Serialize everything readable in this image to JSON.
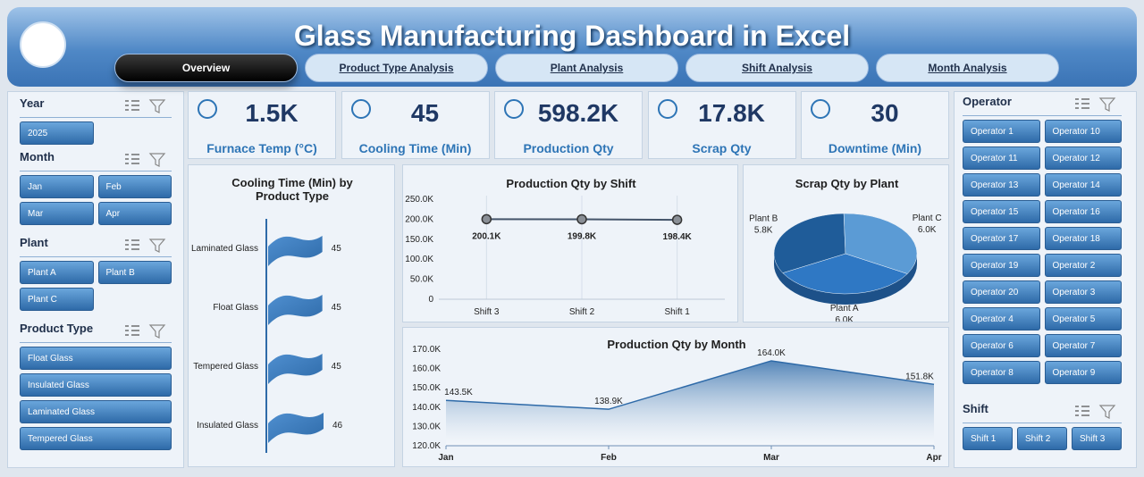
{
  "header": {
    "title": "Glass Manufacturing Dashboard in Excel"
  },
  "nav": {
    "tabs": [
      "Overview",
      "Product Type Analysis",
      "Plant Analysis",
      "Shift Analysis",
      "Month Analysis"
    ]
  },
  "slicers": [
    {
      "title": "Year",
      "items": [
        "2025"
      ]
    },
    {
      "title": "Month",
      "items": [
        "Jan",
        "Feb",
        "Mar",
        "Apr"
      ]
    },
    {
      "title": "Plant",
      "items": [
        "Plant A",
        "Plant B",
        "Plant C"
      ]
    },
    {
      "title": "Product Type",
      "items": [
        "Float Glass",
        "Insulated Glass",
        "Laminated Glass",
        "Tempered Glass"
      ]
    },
    {
      "title": "Operator",
      "items": [
        "Operator 1",
        "Operator 10",
        "Operator 11",
        "Operator 12",
        "Operator 13",
        "Operator 14",
        "Operator 15",
        "Operator 16",
        "Operator 17",
        "Operator 18",
        "Operator 19",
        "Operator 2",
        "Operator 20",
        "Operator 3",
        "Operator 4",
        "Operator 5",
        "Operator 6",
        "Operator 7",
        "Operator 8",
        "Operator 9"
      ]
    },
    {
      "title": "Shift",
      "items": [
        "Shift 1",
        "Shift 2",
        "Shift 3"
      ]
    }
  ],
  "kpis": [
    {
      "value": "1.5K",
      "label": "Furnace Temp (°C)"
    },
    {
      "value": "45",
      "label": "Cooling Time (Min)"
    },
    {
      "value": "598.2K",
      "label": "Production Qty"
    },
    {
      "value": "17.8K",
      "label": "Scrap Qty"
    },
    {
      "value": "30",
      "label": "Downtime (Min)"
    }
  ],
  "chart_data": [
    {
      "type": "bar",
      "orientation": "horizontal",
      "title": "Cooling Time (Min) by Product Type",
      "categories": [
        "Laminated Glass",
        "Float Glass",
        "Tempered Glass",
        "Insulated Glass"
      ],
      "values": [
        45,
        45,
        45,
        46
      ],
      "color": "#2e6aa8"
    },
    {
      "type": "line",
      "title": "Production Qty by Shift",
      "categories": [
        "Shift 3",
        "Shift 2",
        "Shift 1"
      ],
      "values": [
        200100,
        199800,
        198400
      ],
      "value_labels": [
        "200.1K",
        "199.8K",
        "198.4K"
      ],
      "color": "#44546a",
      "ylim": [
        0,
        250000
      ],
      "yticks": [
        0,
        {
          "value": 50000,
          "label": "50.0K"
        },
        {
          "value": 100000,
          "label": "100.0K"
        },
        {
          "value": 150000,
          "label": "150.0K"
        },
        {
          "value": 200000,
          "label": "200.0K"
        },
        {
          "value": 250000,
          "label": "250.0K"
        }
      ],
      "grid": "x"
    },
    {
      "type": "pie",
      "title": "Scrap Qty by Plant",
      "categories": [
        "Plant A",
        "Plant B",
        "Plant C"
      ],
      "values": [
        6000,
        5800,
        6000
      ],
      "value_labels": [
        "6.0K",
        "5.8K",
        "6.0K"
      ],
      "colors": [
        "#2f78c4",
        "#1f5c99",
        "#5b9bd5"
      ]
    },
    {
      "type": "area",
      "title": "Production Qty by Month",
      "categories": [
        "Jan",
        "Feb",
        "Mar",
        "Apr"
      ],
      "values": [
        143500,
        138900,
        164000,
        151800
      ],
      "value_labels": [
        "143.5K",
        "138.9K",
        "164.0K",
        "151.8K"
      ],
      "color": "#2e6aa8",
      "ylim": [
        120000,
        170000
      ],
      "yticks": [
        {
          "value": 120000,
          "label": "120.0K"
        },
        {
          "value": 130000,
          "label": "130.0K"
        },
        {
          "value": 140000,
          "label": "140.0K"
        },
        {
          "value": 150000,
          "label": "150.0K"
        },
        {
          "value": 160000,
          "label": "160.0K"
        },
        {
          "value": 170000,
          "label": "170.0K"
        }
      ]
    }
  ]
}
